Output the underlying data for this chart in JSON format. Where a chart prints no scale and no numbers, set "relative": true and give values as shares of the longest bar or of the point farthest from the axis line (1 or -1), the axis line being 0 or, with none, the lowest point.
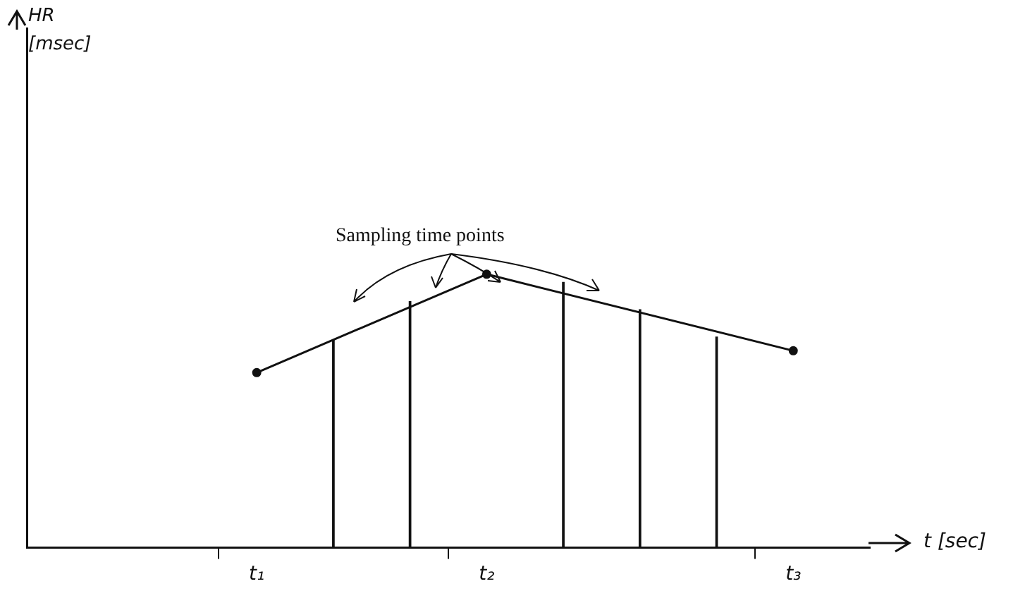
{
  "chart_data": {
    "type": "line",
    "relative": true,
    "xlabel": "t [sec]",
    "annotations": [
      "HR [msec]",
      "Sampling time points"
    ],
    "categories": [
      null,
      null,
      null,
      "t₁",
      null,
      null,
      "t₂",
      null,
      null,
      null,
      "t₃",
      null
    ],
    "series": [
      {
        "color": "#111111",
        "values": [
          null,
          null,
          null,
          0.64,
          null,
          null,
          1,
          null,
          null,
          null,
          0.72,
          null
        ]
      },
      {
        "type": "bar",
        "color": "#111111",
        "values": [
          null,
          null,
          null,
          null,
          0.76,
          0.9,
          null,
          0.97,
          0.87,
          0.77,
          null,
          null
        ]
      }
    ],
    "marker": "circle",
    "line_style": "solid",
    "grid": false,
    "legend": false
  }
}
